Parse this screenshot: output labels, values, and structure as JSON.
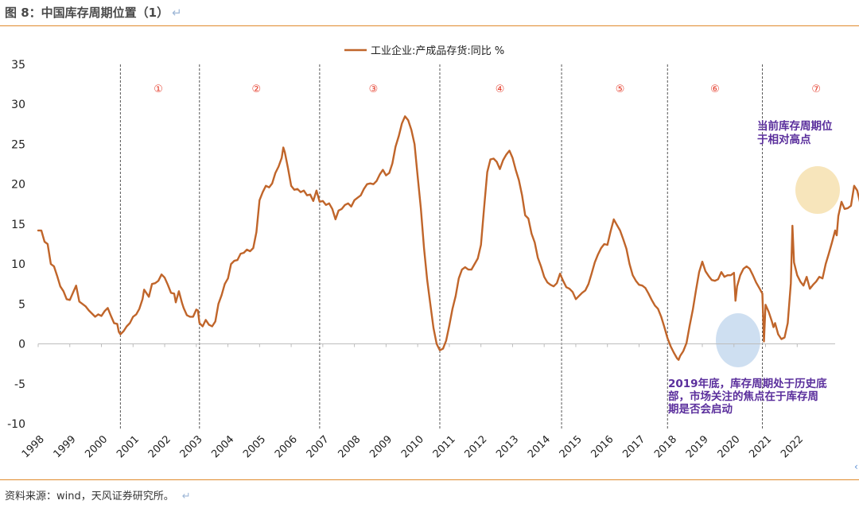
{
  "figure": {
    "title": "图 8：中国库存周期位置（1）",
    "return_mark": "↵",
    "source": "资料来源：wind，天风证券研究所。"
  },
  "colors": {
    "series": "#c0652a",
    "rule": "#e08a2c",
    "phase_label": "#e53d2c",
    "annotation_text": "#5a2e9c",
    "highlight_recent": "#f6e2b4",
    "highlight_2019": "#c9dcf0"
  },
  "chart_data": {
    "type": "line",
    "title": "",
    "xlabel": "",
    "ylabel": "",
    "ylim": [
      -10,
      35
    ],
    "yticks": [
      35,
      30,
      25,
      20,
      15,
      10,
      5,
      0,
      -5,
      -10
    ],
    "xticks": [
      "1998",
      "1999",
      "2000",
      "2001",
      "2002",
      "2003",
      "2004",
      "2005",
      "2006",
      "2007",
      "2008",
      "2009",
      "2010",
      "2011",
      "2012",
      "2013",
      "2014",
      "2015",
      "2016",
      "2017",
      "2018",
      "2019",
      "2020",
      "2021",
      "2022"
    ],
    "legend_position": "top-center",
    "grid": false,
    "series": [
      {
        "name": "工业企业:产成品存货:同比 %",
        "points": [
          [
            1998.0,
            14.2
          ],
          [
            1998.1,
            14.2
          ],
          [
            1998.2,
            12.8
          ],
          [
            1998.3,
            12.5
          ],
          [
            1998.4,
            10.0
          ],
          [
            1998.5,
            9.7
          ],
          [
            1998.6,
            8.5
          ],
          [
            1998.7,
            7.2
          ],
          [
            1998.8,
            6.6
          ],
          [
            1998.9,
            5.6
          ],
          [
            1999.0,
            5.5
          ],
          [
            1999.1,
            6.4
          ],
          [
            1999.2,
            7.3
          ],
          [
            1999.3,
            5.3
          ],
          [
            1999.4,
            5.0
          ],
          [
            1999.5,
            4.7
          ],
          [
            1999.6,
            4.2
          ],
          [
            1999.7,
            3.8
          ],
          [
            1999.8,
            3.4
          ],
          [
            1999.9,
            3.7
          ],
          [
            2000.0,
            3.5
          ],
          [
            2000.1,
            4.1
          ],
          [
            2000.2,
            4.5
          ],
          [
            2000.3,
            3.5
          ],
          [
            2000.4,
            2.6
          ],
          [
            2000.5,
            2.5
          ],
          [
            2000.55,
            1.5
          ],
          [
            2000.6,
            1.2
          ],
          [
            2000.7,
            1.6
          ],
          [
            2000.8,
            2.2
          ],
          [
            2000.9,
            2.6
          ],
          [
            2001.0,
            3.4
          ],
          [
            2001.1,
            3.7
          ],
          [
            2001.2,
            4.4
          ],
          [
            2001.3,
            5.6
          ],
          [
            2001.35,
            6.8
          ],
          [
            2001.4,
            6.5
          ],
          [
            2001.5,
            5.9
          ],
          [
            2001.6,
            7.5
          ],
          [
            2001.7,
            7.6
          ],
          [
            2001.8,
            7.9
          ],
          [
            2001.9,
            8.7
          ],
          [
            2002.0,
            8.3
          ],
          [
            2002.1,
            7.4
          ],
          [
            2002.2,
            6.4
          ],
          [
            2002.3,
            6.3
          ],
          [
            2002.35,
            5.2
          ],
          [
            2002.45,
            6.6
          ],
          [
            2002.55,
            5.1
          ],
          [
            2002.6,
            4.5
          ],
          [
            2002.7,
            3.6
          ],
          [
            2002.8,
            3.4
          ],
          [
            2002.9,
            3.4
          ],
          [
            2003.0,
            4.3
          ],
          [
            2003.05,
            4.2
          ],
          [
            2003.1,
            2.6
          ],
          [
            2003.2,
            2.2
          ],
          [
            2003.3,
            3.0
          ],
          [
            2003.4,
            2.4
          ],
          [
            2003.5,
            2.2
          ],
          [
            2003.6,
            2.8
          ],
          [
            2003.7,
            5.0
          ],
          [
            2003.8,
            6.1
          ],
          [
            2003.9,
            7.5
          ],
          [
            2004.0,
            8.2
          ],
          [
            2004.1,
            10.0
          ],
          [
            2004.2,
            10.4
          ],
          [
            2004.3,
            10.5
          ],
          [
            2004.4,
            11.3
          ],
          [
            2004.5,
            11.4
          ],
          [
            2004.6,
            11.8
          ],
          [
            2004.7,
            11.6
          ],
          [
            2004.8,
            12.0
          ],
          [
            2004.9,
            14.0
          ],
          [
            2005.0,
            18.0
          ],
          [
            2005.1,
            19.0
          ],
          [
            2005.2,
            19.8
          ],
          [
            2005.3,
            19.6
          ],
          [
            2005.4,
            20.1
          ],
          [
            2005.5,
            21.4
          ],
          [
            2005.6,
            22.2
          ],
          [
            2005.7,
            23.3
          ],
          [
            2005.75,
            24.6
          ],
          [
            2005.8,
            24.0
          ],
          [
            2005.9,
            22.0
          ],
          [
            2006.0,
            19.8
          ],
          [
            2006.1,
            19.3
          ],
          [
            2006.2,
            19.4
          ],
          [
            2006.3,
            19.0
          ],
          [
            2006.4,
            19.2
          ],
          [
            2006.5,
            18.6
          ],
          [
            2006.6,
            18.7
          ],
          [
            2006.7,
            17.9
          ],
          [
            2006.8,
            19.2
          ],
          [
            2006.85,
            18.5
          ],
          [
            2006.9,
            17.8
          ],
          [
            2007.0,
            17.9
          ],
          [
            2007.1,
            17.4
          ],
          [
            2007.2,
            17.6
          ],
          [
            2007.3,
            16.9
          ],
          [
            2007.4,
            15.6
          ],
          [
            2007.5,
            16.7
          ],
          [
            2007.6,
            16.9
          ],
          [
            2007.7,
            17.4
          ],
          [
            2007.8,
            17.6
          ],
          [
            2007.9,
            17.2
          ],
          [
            2008.0,
            18.0
          ],
          [
            2008.1,
            18.3
          ],
          [
            2008.2,
            18.6
          ],
          [
            2008.3,
            19.4
          ],
          [
            2008.4,
            20.0
          ],
          [
            2008.5,
            20.1
          ],
          [
            2008.6,
            20.0
          ],
          [
            2008.7,
            20.4
          ],
          [
            2008.8,
            21.2
          ],
          [
            2008.9,
            21.8
          ],
          [
            2009.0,
            21.1
          ],
          [
            2009.1,
            21.4
          ],
          [
            2009.2,
            22.6
          ],
          [
            2009.3,
            24.7
          ],
          [
            2009.4,
            26.0
          ],
          [
            2009.5,
            27.6
          ],
          [
            2009.6,
            28.5
          ],
          [
            2009.7,
            28.0
          ],
          [
            2009.8,
            26.8
          ],
          [
            2009.9,
            25.0
          ],
          [
            2010.0,
            21.0
          ],
          [
            2010.1,
            17.0
          ],
          [
            2010.2,
            12.0
          ],
          [
            2010.3,
            8.0
          ],
          [
            2010.4,
            5.0
          ],
          [
            2010.5,
            2.0
          ],
          [
            2010.6,
            0.0
          ],
          [
            2010.7,
            -0.8
          ],
          [
            2010.8,
            -0.6
          ],
          [
            2010.9,
            0.4
          ],
          [
            2011.0,
            2.3
          ],
          [
            2011.1,
            4.4
          ],
          [
            2011.2,
            6.0
          ],
          [
            2011.3,
            8.2
          ],
          [
            2011.4,
            9.3
          ],
          [
            2011.5,
            9.6
          ],
          [
            2011.6,
            9.3
          ],
          [
            2011.7,
            9.3
          ],
          [
            2011.8,
            10.0
          ],
          [
            2011.9,
            10.7
          ],
          [
            2012.0,
            12.4
          ],
          [
            2012.1,
            17.0
          ],
          [
            2012.2,
            21.5
          ],
          [
            2012.3,
            23.1
          ],
          [
            2012.4,
            23.2
          ],
          [
            2012.5,
            22.8
          ],
          [
            2012.6,
            21.9
          ],
          [
            2012.7,
            23.0
          ],
          [
            2012.8,
            23.7
          ],
          [
            2012.9,
            24.2
          ],
          [
            2013.0,
            23.3
          ],
          [
            2013.1,
            21.8
          ],
          [
            2013.2,
            20.5
          ],
          [
            2013.3,
            18.6
          ],
          [
            2013.4,
            16.1
          ],
          [
            2013.5,
            15.7
          ],
          [
            2013.6,
            13.8
          ],
          [
            2013.7,
            12.7
          ],
          [
            2013.8,
            10.8
          ],
          [
            2013.9,
            9.7
          ],
          [
            2014.0,
            8.4
          ],
          [
            2014.1,
            7.7
          ],
          [
            2014.2,
            7.4
          ],
          [
            2014.3,
            7.2
          ],
          [
            2014.4,
            7.6
          ],
          [
            2014.5,
            8.8
          ],
          [
            2014.6,
            7.9
          ],
          [
            2014.7,
            7.1
          ],
          [
            2014.8,
            6.9
          ],
          [
            2014.9,
            6.5
          ],
          [
            2015.0,
            5.6
          ],
          [
            2015.1,
            6.0
          ],
          [
            2015.2,
            6.4
          ],
          [
            2015.3,
            6.7
          ],
          [
            2015.4,
            7.5
          ],
          [
            2015.5,
            8.8
          ],
          [
            2015.6,
            10.2
          ],
          [
            2015.7,
            11.2
          ],
          [
            2015.8,
            12.0
          ],
          [
            2015.9,
            12.5
          ],
          [
            2016.0,
            12.4
          ],
          [
            2016.1,
            14.1
          ],
          [
            2016.2,
            15.6
          ],
          [
            2016.3,
            14.9
          ],
          [
            2016.4,
            14.2
          ],
          [
            2016.5,
            13.1
          ],
          [
            2016.6,
            11.9
          ],
          [
            2016.7,
            10.0
          ],
          [
            2016.8,
            8.6
          ],
          [
            2016.9,
            7.9
          ],
          [
            2017.0,
            7.4
          ],
          [
            2017.1,
            7.3
          ],
          [
            2017.2,
            7.0
          ],
          [
            2017.3,
            6.3
          ],
          [
            2017.4,
            5.5
          ],
          [
            2017.5,
            4.8
          ],
          [
            2017.6,
            4.4
          ],
          [
            2017.7,
            3.4
          ],
          [
            2017.8,
            2.1
          ],
          [
            2017.9,
            0.7
          ],
          [
            2018.0,
            -0.3
          ],
          [
            2018.1,
            -1.1
          ],
          [
            2018.2,
            -1.8
          ],
          [
            2018.25,
            -2.0
          ],
          [
            2018.3,
            -1.5
          ],
          [
            2018.4,
            -0.9
          ],
          [
            2018.5,
            0.1
          ],
          [
            2018.6,
            2.3
          ],
          [
            2018.7,
            4.3
          ],
          [
            2018.8,
            6.7
          ],
          [
            2018.9,
            9.0
          ],
          [
            2019.0,
            10.3
          ],
          [
            2019.1,
            9.1
          ],
          [
            2019.2,
            8.5
          ],
          [
            2019.3,
            8.0
          ],
          [
            2019.4,
            7.9
          ],
          [
            2019.5,
            8.1
          ],
          [
            2019.6,
            9.0
          ],
          [
            2019.7,
            8.4
          ],
          [
            2019.8,
            8.6
          ],
          [
            2019.9,
            8.6
          ],
          [
            2020.0,
            8.9
          ],
          [
            2020.05,
            5.4
          ],
          [
            2020.1,
            7.2
          ],
          [
            2020.2,
            8.6
          ],
          [
            2020.3,
            9.4
          ],
          [
            2020.4,
            9.7
          ],
          [
            2020.5,
            9.4
          ],
          [
            2020.6,
            8.6
          ],
          [
            2020.7,
            7.7
          ],
          [
            2020.8,
            7.0
          ],
          [
            2020.9,
            6.3
          ],
          [
            2020.95,
            0.3
          ],
          [
            2021.0,
            4.9
          ],
          [
            2021.1,
            4.0
          ],
          [
            2021.2,
            2.8
          ],
          [
            2021.25,
            2.1
          ],
          [
            2021.3,
            2.6
          ],
          [
            2021.4,
            1.2
          ],
          [
            2021.5,
            0.6
          ],
          [
            2021.6,
            0.8
          ],
          [
            2021.7,
            2.6
          ],
          [
            2021.8,
            7.6
          ],
          [
            2021.85,
            14.8
          ],
          [
            2021.9,
            10.2
          ],
          [
            2022.0,
            8.6
          ],
          [
            2022.1,
            7.8
          ],
          [
            2022.2,
            7.3
          ],
          [
            2022.3,
            8.4
          ],
          [
            2022.4,
            6.9
          ],
          [
            2022.5,
            7.4
          ],
          [
            2022.6,
            7.8
          ],
          [
            2022.7,
            8.4
          ],
          [
            2022.8,
            8.2
          ],
          [
            2022.9,
            10.0
          ],
          [
            2023.0,
            11.3
          ],
          [
            2023.1,
            12.7
          ],
          [
            2023.2,
            14.2
          ],
          [
            2023.25,
            13.6
          ],
          [
            2023.3,
            16.0
          ],
          [
            2023.4,
            17.8
          ],
          [
            2023.5,
            16.9
          ],
          [
            2023.6,
            17.0
          ],
          [
            2023.7,
            17.3
          ],
          [
            2023.8,
            19.8
          ],
          [
            2023.9,
            19.2
          ],
          [
            2024.0,
            17.5
          ],
          [
            2024.1,
            14.2
          ],
          [
            2024.2,
            13.9
          ]
        ]
      }
    ],
    "phase_dividers": [
      2000.6,
      2003.1,
      2006.9,
      2010.7,
      2014.55,
      2017.9,
      2020.9
    ],
    "phase_labels": [
      {
        "label": "①",
        "x": 2001.8
      },
      {
        "label": "②",
        "x": 2004.9
      },
      {
        "label": "③",
        "x": 2008.6
      },
      {
        "label": "④",
        "x": 2012.6
      },
      {
        "label": "⑤",
        "x": 2016.4
      },
      {
        "label": "⑥",
        "x": 2019.4
      },
      {
        "label": "⑦",
        "x": 2022.6
      }
    ],
    "annotations": [
      {
        "lines": [
          "当前库存周期位",
          "于相对高点"
        ]
      },
      {
        "lines": [
          "2019年底，库存周期处于历史底",
          "部，市场关注的焦点在于库存周",
          "期是否会启动"
        ]
      }
    ]
  }
}
